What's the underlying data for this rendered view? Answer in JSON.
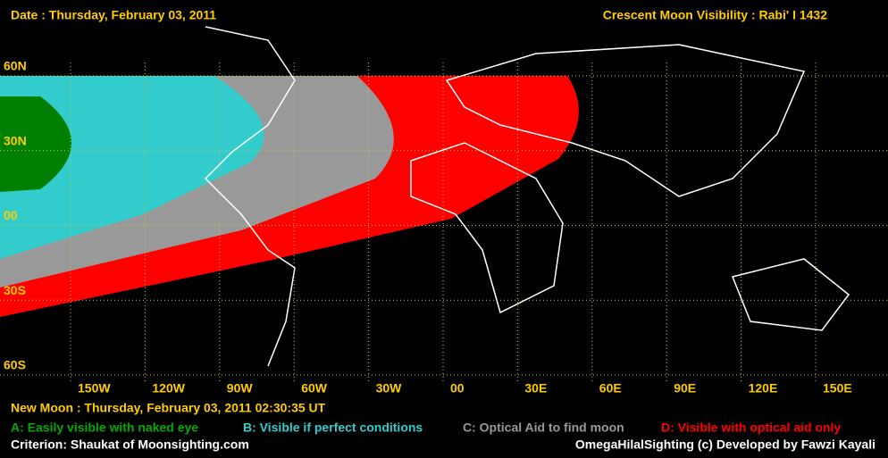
{
  "header": {
    "date": "Date : Thursday, February 03, 2011",
    "title": "Crescent Moon Visibility : Rabi' I  1432"
  },
  "map": {
    "lat_labels": [
      "60N",
      "30N",
      "00",
      "30S",
      "60S"
    ],
    "lon_labels": [
      "150W",
      "120W",
      "90W",
      "60W",
      "30W",
      "00",
      "30E",
      "60E",
      "90E",
      "120E",
      "150E"
    ]
  },
  "footer": {
    "new_moon": "New Moon : Thursday, February 03, 2011  02:30:35  UT",
    "legend": [
      "A: Easily visible with naked eye",
      "B: Visible if perfect conditions",
      "C: Optical Aid to find moon",
      "D: Visible with optical aid only"
    ],
    "criterion": "Criterion: Shaukat of Moonsighting.com",
    "credit": "OmegaHilalSighting  (c)  Developed by Fawzi Kayali"
  }
}
